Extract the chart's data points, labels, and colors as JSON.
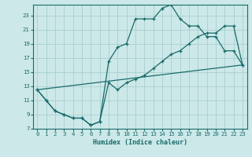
{
  "xlabel": "Humidex (Indice chaleur)",
  "bg_color": "#cce8e8",
  "grid_color": "#aacfcf",
  "line_color": "#1a6b6b",
  "xlim": [
    -0.5,
    23.5
  ],
  "ylim": [
    7,
    24.5
  ],
  "yticks": [
    7,
    9,
    11,
    13,
    15,
    17,
    19,
    21,
    23
  ],
  "xticks": [
    0,
    1,
    2,
    3,
    4,
    5,
    6,
    7,
    8,
    9,
    10,
    11,
    12,
    13,
    14,
    15,
    16,
    17,
    18,
    19,
    20,
    21,
    22,
    23
  ],
  "line1_x": [
    0,
    1,
    2,
    3,
    4,
    5,
    6,
    7,
    8,
    9,
    10,
    11,
    12,
    13,
    14,
    15,
    16,
    17,
    18,
    19,
    20,
    21,
    22,
    23
  ],
  "line1_y": [
    12.5,
    11.0,
    9.5,
    9.0,
    8.5,
    8.5,
    7.5,
    8.0,
    16.5,
    18.5,
    19.0,
    22.5,
    22.5,
    22.5,
    24.0,
    24.5,
    22.5,
    21.5,
    21.5,
    20.0,
    20.0,
    18.0,
    18.0,
    16.0
  ],
  "line2_x": [
    0,
    1,
    2,
    3,
    4,
    5,
    6,
    7,
    8,
    9,
    10,
    11,
    12,
    13,
    14,
    15,
    16,
    17,
    18,
    19,
    20,
    21,
    22,
    23
  ],
  "line2_y": [
    12.5,
    11.0,
    9.5,
    9.0,
    8.5,
    8.5,
    7.5,
    8.0,
    13.5,
    12.5,
    13.5,
    14.0,
    14.5,
    15.5,
    16.5,
    17.5,
    18.0,
    19.0,
    20.0,
    20.5,
    20.5,
    21.5,
    21.5,
    16.0
  ],
  "line3_x": [
    0,
    23
  ],
  "line3_y": [
    12.5,
    16.0
  ]
}
